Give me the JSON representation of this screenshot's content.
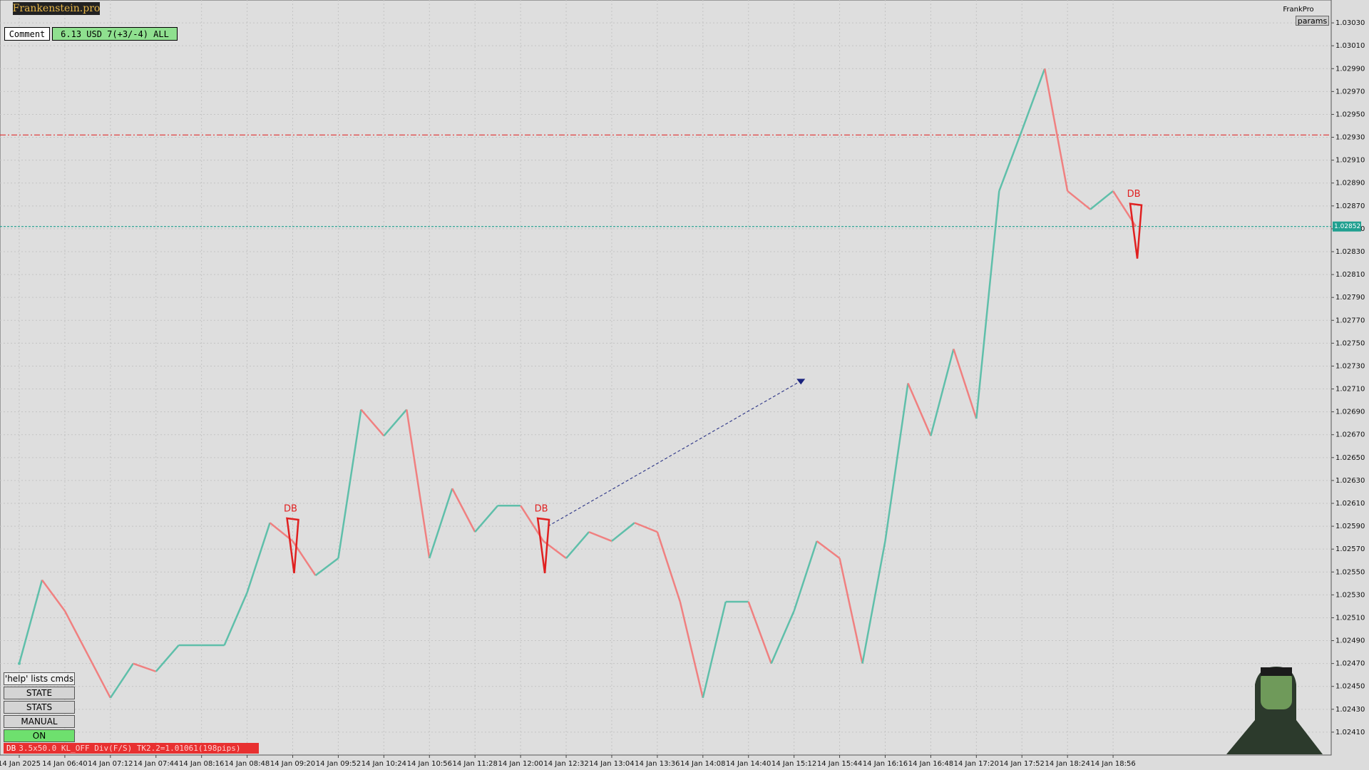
{
  "chart_data": {
    "type": "line",
    "categories": [
      "14 Jan 2025",
      null,
      "14 Jan 06:40",
      null,
      "14 Jan 07:12",
      null,
      "14 Jan 07:44",
      null,
      "14 Jan 08:16",
      null,
      "14 Jan 08:48",
      null,
      "14 Jan 09:20",
      null,
      "14 Jan 09:52",
      null,
      "14 Jan 10:24",
      null,
      "14 Jan 10:56",
      null,
      "14 Jan 11:28",
      null,
      "14 Jan 12:00",
      null,
      "14 Jan 12:32",
      null,
      "14 Jan 13:04",
      null,
      "14 Jan 13:36",
      null,
      "14 Jan 14:08",
      null,
      "14 Jan 14:40",
      null,
      "14 Jan 15:12",
      null,
      "14 Jan 15:44",
      null,
      "14 Jan 16:16",
      null,
      "14 Jan 16:48",
      null,
      "14 Jan 17:20",
      null,
      "14 Jan 17:52",
      null,
      "14 Jan 18:24",
      null,
      "14 Jan 18:56",
      null
    ],
    "values": [
      1.0247,
      1.02543,
      1.02516,
      1.02478,
      1.0244,
      1.0247,
      1.02463,
      1.02486,
      1.02486,
      1.02486,
      1.02532,
      1.02593,
      1.02577,
      1.02547,
      1.02562,
      1.02692,
      1.02669,
      1.02692,
      1.02562,
      1.02623,
      1.02585,
      1.02608,
      1.02608,
      1.02577,
      1.02562,
      1.02585,
      1.02577,
      1.02593,
      1.02585,
      1.02524,
      1.0244,
      1.02524,
      1.02524,
      1.0247,
      1.02516,
      1.02577,
      1.02562,
      1.0247,
      1.02577,
      1.02715,
      1.02669,
      1.02745,
      1.02684,
      1.02883,
      1.02936,
      1.0299,
      1.02883,
      1.02867,
      1.02883,
      1.02852
    ],
    "up_color": "#5fbfaa",
    "down_color": "#f08080",
    "ylim": [
      1.0239,
      1.0305
    ],
    "yticks": [
      {
        "value": 1.0241,
        "label": "1.02410"
      },
      {
        "value": 1.0243,
        "label": "1.02430"
      },
      {
        "value": 1.0245,
        "label": "1.02450"
      },
      {
        "value": 1.0247,
        "label": "1.02470"
      },
      {
        "value": 1.0249,
        "label": "1.02490"
      },
      {
        "value": 1.0251,
        "label": "1.02510"
      },
      {
        "value": 1.0253,
        "label": "1.02530"
      },
      {
        "value": 1.0255,
        "label": "1.02550"
      },
      {
        "value": 1.0257,
        "label": "1.02570"
      },
      {
        "value": 1.0259,
        "label": "1.02590"
      },
      {
        "value": 1.0261,
        "label": "1.02610"
      },
      {
        "value": 1.0263,
        "label": "1.02630"
      },
      {
        "value": 1.0265,
        "label": "1.02650"
      },
      {
        "value": 1.0267,
        "label": "1.02670"
      },
      {
        "value": 1.0269,
        "label": "1.02690"
      },
      {
        "value": 1.0271,
        "label": "1.02710"
      },
      {
        "value": 1.0273,
        "label": "1.02730"
      },
      {
        "value": 1.0275,
        "label": "1.02750"
      },
      {
        "value": 1.0277,
        "label": "1.02770"
      },
      {
        "value": 1.0279,
        "label": "1.02790"
      },
      {
        "value": 1.0281,
        "label": "1.02810"
      },
      {
        "value": 1.0283,
        "label": "1.02830"
      },
      {
        "value": 1.0285,
        "label": "1.02850"
      },
      {
        "value": 1.0287,
        "label": "1.02870"
      },
      {
        "value": 1.0289,
        "label": "1.02890"
      },
      {
        "value": 1.0291,
        "label": "1.02910"
      },
      {
        "value": 1.0293,
        "label": "1.02930"
      },
      {
        "value": 1.0295,
        "label": "1.02950"
      },
      {
        "value": 1.0297,
        "label": "1.02970"
      },
      {
        "value": 1.0299,
        "label": "1.02990"
      },
      {
        "value": 1.0301,
        "label": "1.03010"
      },
      {
        "value": 1.0303,
        "label": "1.03030"
      }
    ],
    "grid": true,
    "price_lines": [
      {
        "value": 1.02932,
        "color": "#e03030"
      },
      {
        "value": 1.02852,
        "color": "#20a090"
      }
    ],
    "current_price": 1.02852,
    "trade_line": {
      "start": 1.0259,
      "end": 1.02717,
      "color": "#1a237e"
    },
    "annotations": [
      "DB",
      "DB",
      "DB"
    ]
  },
  "ui": {
    "badge": "Frankenstein.pro",
    "comment": "Comment",
    "profit": "6.13 USD 7(+3/-4) ALL",
    "brand": "FrankPro",
    "params": "params",
    "buttons": [
      "'help' lists cmds",
      "STATE",
      "STATS",
      "MANUAL",
      "ON"
    ],
    "status_tag": "DB",
    "status": "3.5x50.0 KL_OFF Div(F/S) TK2.2=1.01061(198pips)"
  }
}
